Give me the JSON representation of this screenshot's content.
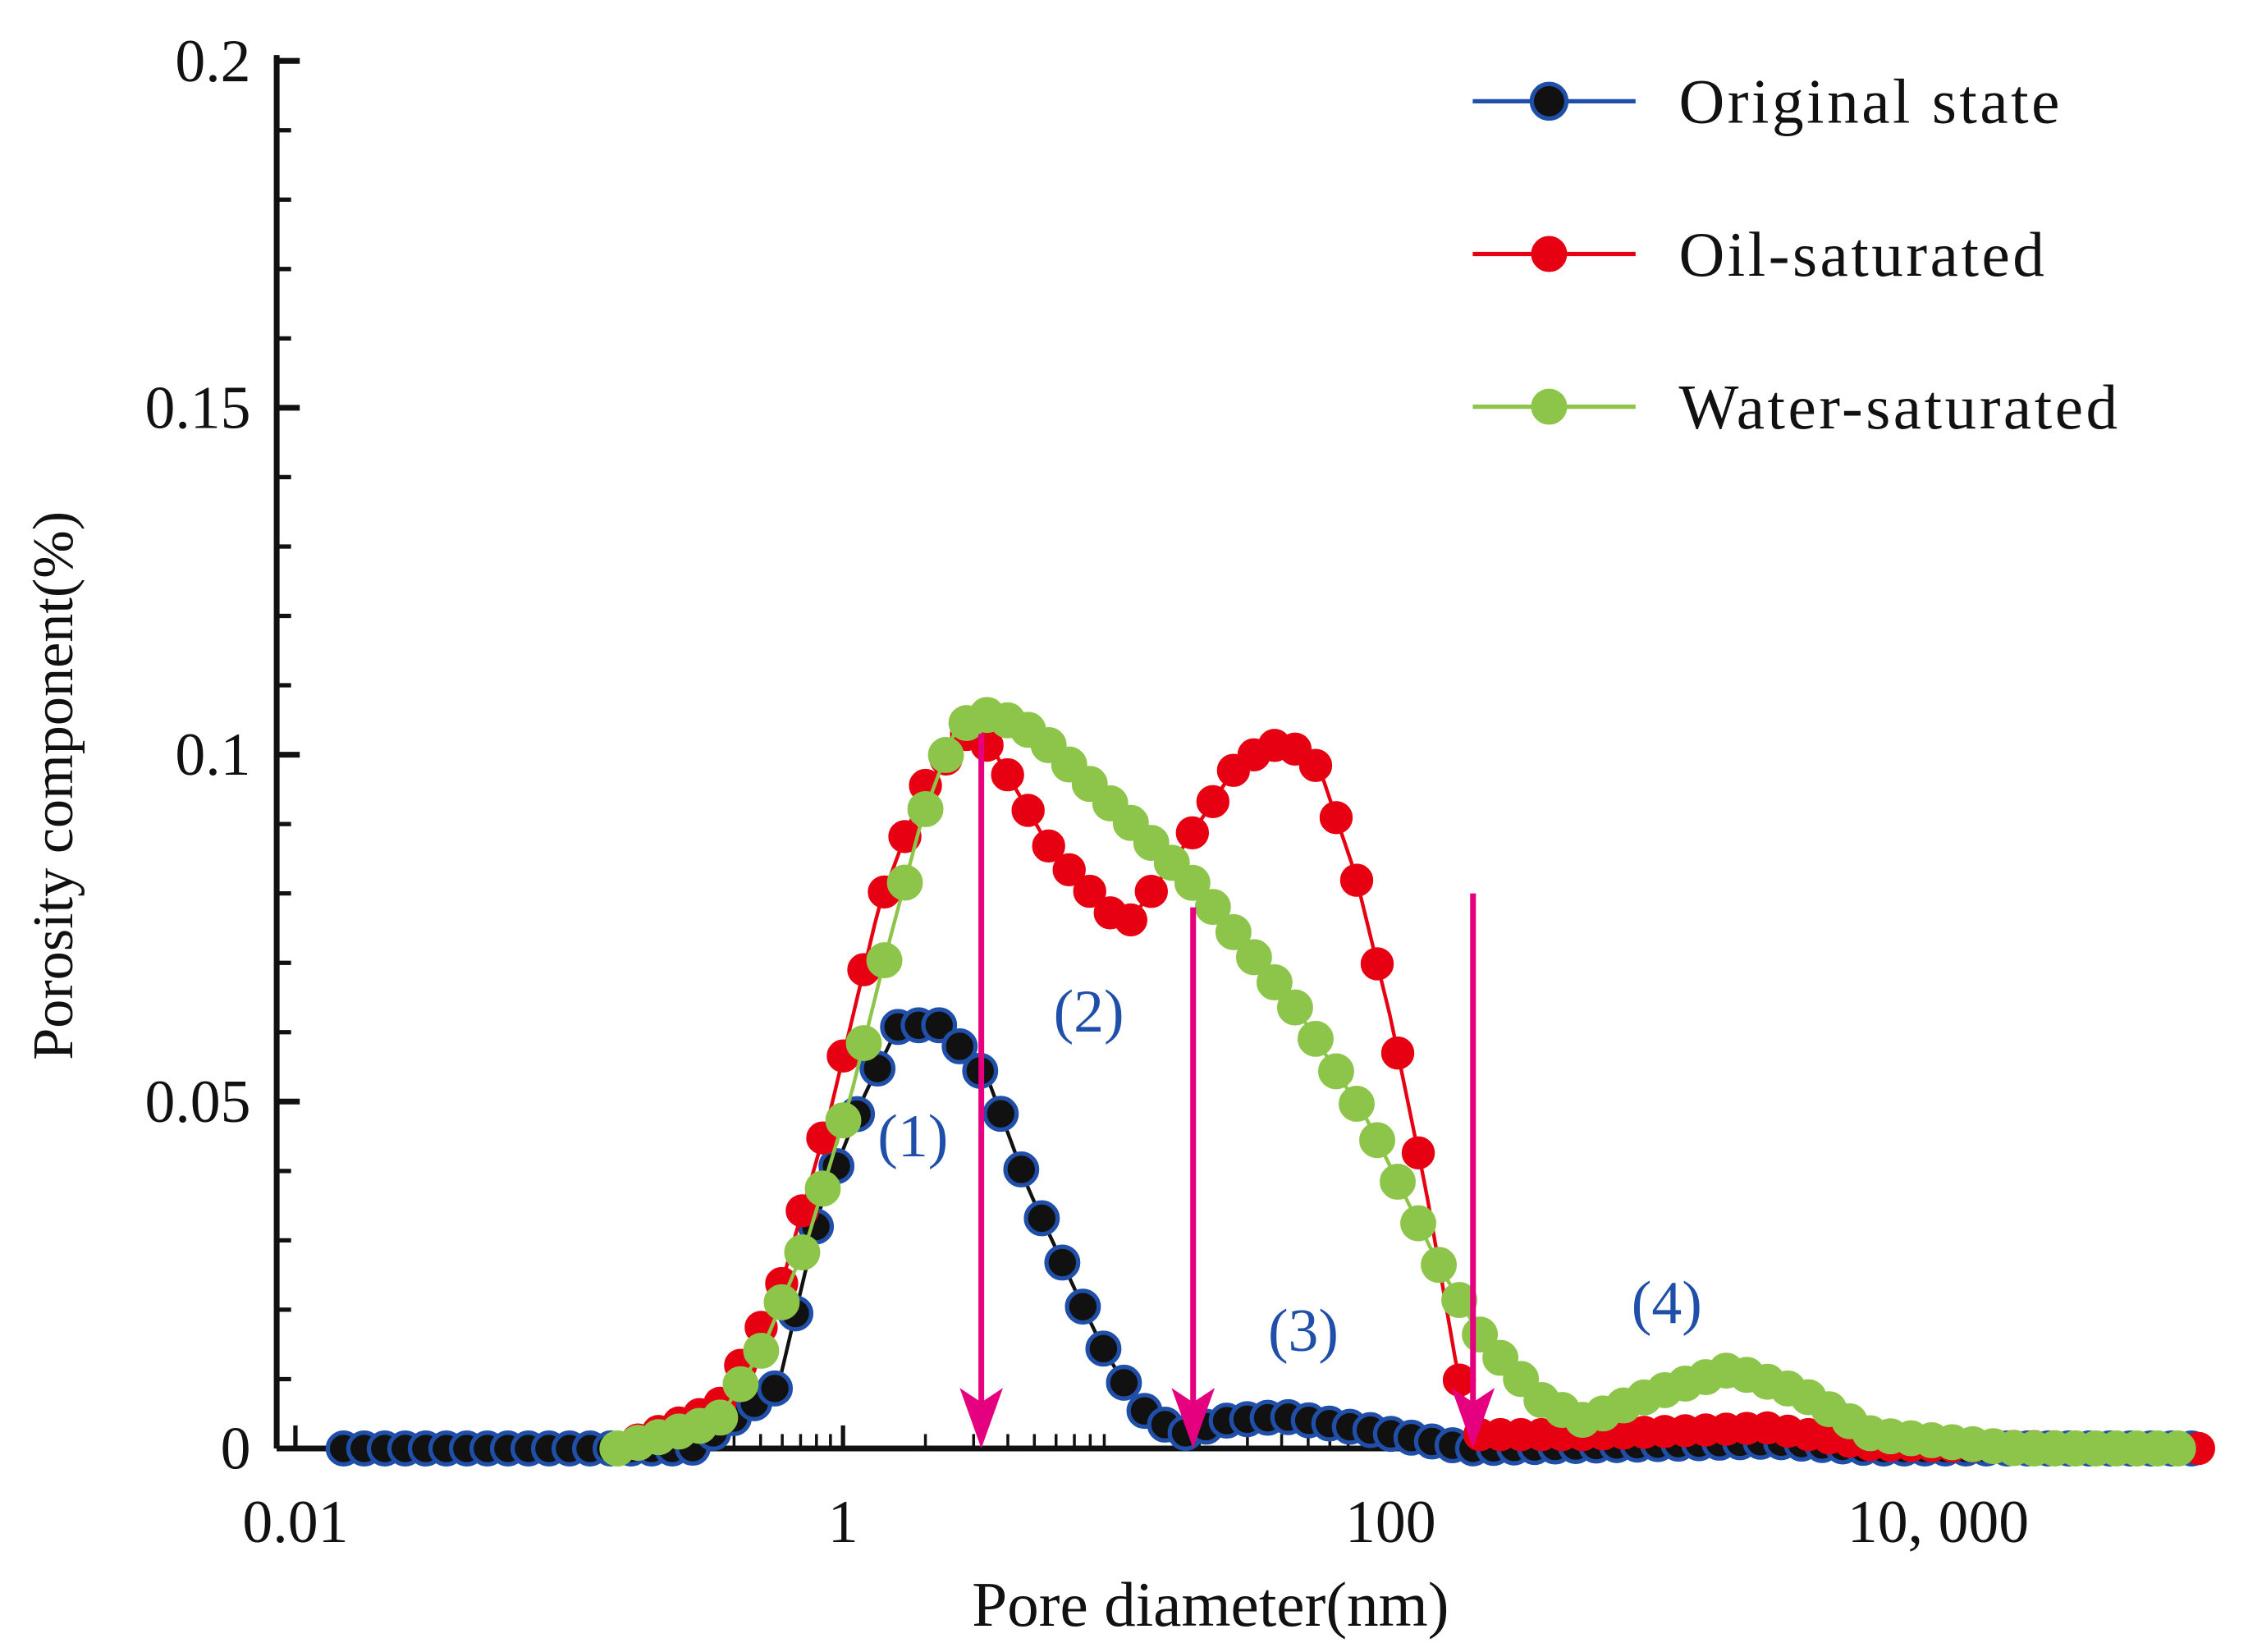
{
  "chart_data": {
    "type": "scatter",
    "xlabel": "Pore diameter(nm)",
    "ylabel": "Porosity component(%)",
    "xscale": "log",
    "xlim": [
      0.01,
      100000
    ],
    "ylim": [
      0,
      0.2
    ],
    "xticks": [
      0.01,
      1,
      100,
      10000
    ],
    "xtick_labels": [
      "0.01",
      "1",
      "100",
      "10, 000"
    ],
    "yticks": [
      0,
      0.05,
      0.1,
      0.15,
      0.2
    ],
    "ytick_labels": [
      "0",
      "0.05",
      "0.1",
      "0.15",
      "0.2"
    ],
    "legend_position": "top-right",
    "series": [
      {
        "name": "Original state",
        "color": "#111111",
        "edge": "#1f4fa8",
        "line": "#111111",
        "points": [
          [
            0.015,
            0
          ],
          [
            0.28,
            0
          ],
          [
            0.58,
            0.009
          ],
          [
            0.83,
            0.035
          ],
          [
            1.2,
            0.051
          ],
          [
            1.6,
            0.061
          ],
          [
            2.3,
            0.061
          ],
          [
            3.4,
            0.053
          ],
          [
            4.8,
            0.037
          ],
          [
            7.4,
            0.021
          ],
          [
            8.9,
            0.0145
          ],
          [
            12,
            0.006
          ],
          [
            17,
            0.002
          ],
          [
            25,
            0.004
          ],
          [
            41,
            0.0046
          ],
          [
            83,
            0.0027
          ],
          [
            195,
            0
          ],
          [
            2450,
            0.001
          ],
          [
            5750,
            0
          ],
          [
            93000,
            0
          ]
        ]
      },
      {
        "name": "Oil-saturated",
        "color": "#e60012",
        "edge": "#e60012",
        "line": "#e60012",
        "points": [
          [
            0.15,
            0
          ],
          [
            0.35,
            0.006
          ],
          [
            0.58,
            0.022
          ],
          [
            0.89,
            0.048
          ],
          [
            1.35,
            0.078
          ],
          [
            1.95,
            0.095
          ],
          [
            2.8,
            0.103
          ],
          [
            3.5,
            0.101
          ],
          [
            5.8,
            0.086
          ],
          [
            10.7,
            0.075
          ],
          [
            17,
            0.086
          ],
          [
            28,
            0.099
          ],
          [
            41,
            0.102
          ],
          [
            55,
            0.098
          ],
          [
            74,
            0.083
          ],
          [
            100,
            0.062
          ],
          [
            135,
            0.037
          ],
          [
            172,
            0.013
          ],
          [
            195,
            0.002
          ],
          [
            510,
            0.002
          ],
          [
            2350,
            0.003
          ],
          [
            5750,
            0.0005
          ],
          [
            93000,
            0
          ]
        ]
      },
      {
        "name": "Water-saturated",
        "color": "#8dc54b",
        "edge": "#8dc54b",
        "line": "#8dc54b",
        "points": [
          [
            0.15,
            0
          ],
          [
            0.35,
            0.004
          ],
          [
            0.51,
            0.0145
          ],
          [
            0.74,
            0.03
          ],
          [
            1.07,
            0.051
          ],
          [
            1.45,
            0.072
          ],
          [
            1.95,
            0.091
          ],
          [
            2.6,
            0.104
          ],
          [
            3.5,
            0.106
          ],
          [
            5.1,
            0.103
          ],
          [
            10.7,
            0.091
          ],
          [
            19.5,
            0.081
          ],
          [
            46,
            0.063
          ],
          [
            83,
            0.047
          ],
          [
            152,
            0.026
          ],
          [
            218,
            0.0156
          ],
          [
            355,
            0.007
          ],
          [
            510,
            0.004
          ],
          [
            930,
            0.008
          ],
          [
            1740,
            0.0114
          ],
          [
            3160,
            0.008
          ],
          [
            5750,
            0.002
          ],
          [
            19500,
            0
          ],
          [
            89000,
            0
          ]
        ]
      }
    ],
    "arrows": [
      {
        "x": 3.2,
        "from": 0.103,
        "to": 0
      },
      {
        "x": 19,
        "from": 0.078,
        "to": 0
      },
      {
        "x": 200,
        "from": 0.08,
        "to": 0
      }
    ],
    "arrow_color": "#e4007f",
    "annotations": [
      {
        "text": "(1)",
        "x": 1.8,
        "y": 0.045
      },
      {
        "text": "(2)",
        "x": 7.9,
        "y": 0.063
      },
      {
        "text": "(3)",
        "x": 48,
        "y": 0.017
      },
      {
        "text": "(4)",
        "x": 1020,
        "y": 0.021
      }
    ],
    "annotation_color": "#1f4fa8"
  }
}
